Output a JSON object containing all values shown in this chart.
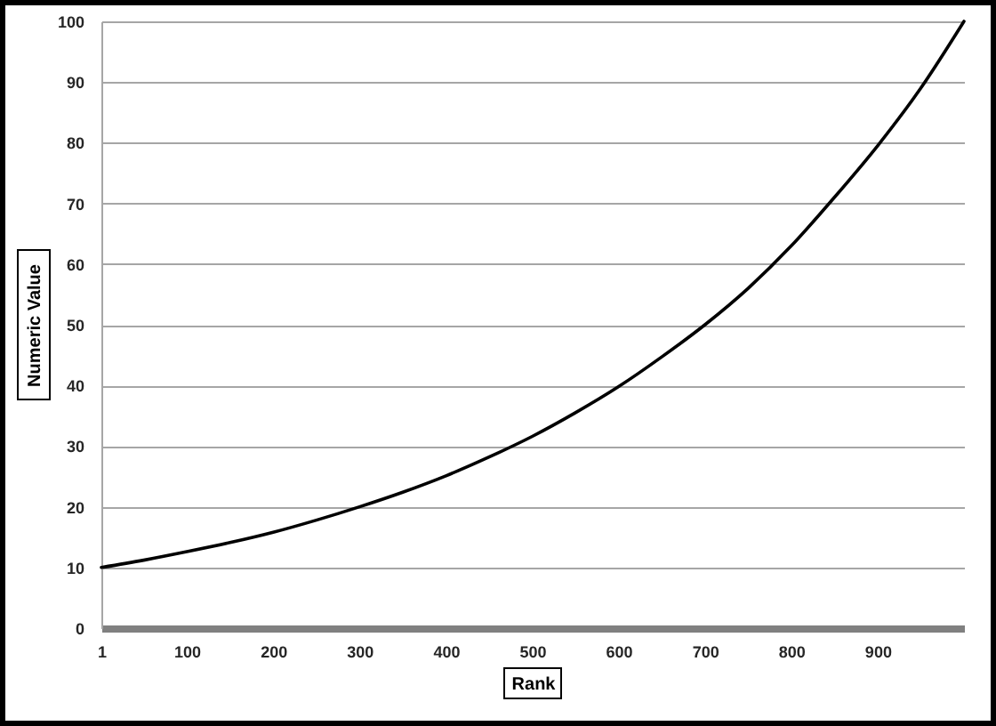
{
  "chart_data": {
    "type": "line",
    "xlabel": "Rank",
    "ylabel": "Numeric Value",
    "x": [
      1,
      50,
      100,
      150,
      200,
      250,
      300,
      350,
      400,
      450,
      500,
      550,
      600,
      650,
      700,
      750,
      800,
      850,
      900,
      950,
      1000
    ],
    "series": [
      {
        "color": "#000000",
        "values": [
          10,
          11.2,
          12.6,
          14.1,
          15.8,
          17.8,
          20,
          22.4,
          25.1,
          28.2,
          31.6,
          35.5,
          39.8,
          44.7,
          50,
          56,
          63,
          71,
          79.5,
          89,
          100
        ]
      }
    ],
    "xlim": [
      1,
      1000
    ],
    "xticks": [
      1,
      100,
      200,
      300,
      400,
      500,
      600,
      700,
      800,
      900
    ],
    "ylim": [
      0,
      100
    ],
    "yticks": [
      0,
      10,
      20,
      30,
      40,
      50,
      60,
      70,
      80,
      90,
      100
    ],
    "grid": "y",
    "line_style": "solid"
  }
}
